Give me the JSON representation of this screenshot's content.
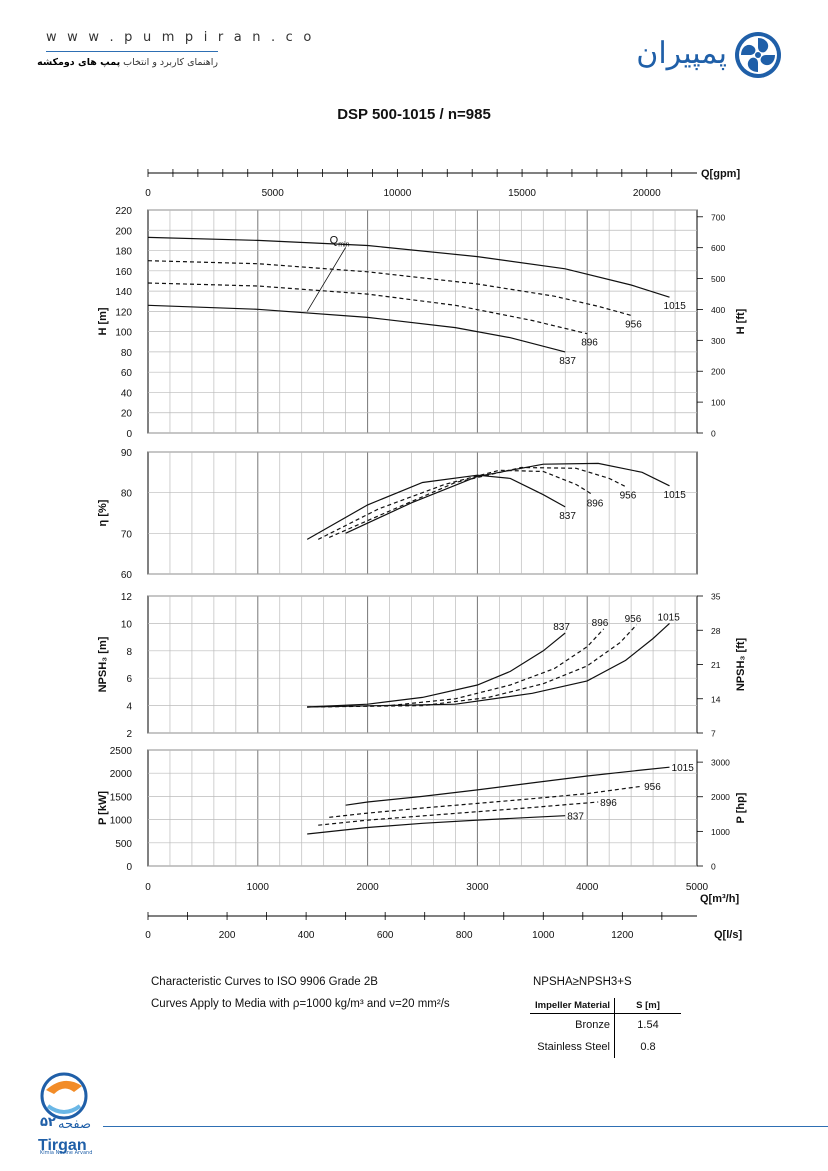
{
  "header": {
    "website": "w w w . p u m p i r a n . c o",
    "tagline_prefix": "راهنمای کاربرد و انتخاب ",
    "tagline_bold": "پمپ های دومکشه",
    "brand_name": "پمپیران",
    "brand_icon": "pumpiran-swirl-logo"
  },
  "title": "DSP 500-1015 / n=985",
  "chart_data": [
    {
      "type": "line",
      "panel": "head",
      "xlabel": "Q[m³/h]",
      "ylabel": "H [m]",
      "y2label": "H [ft]",
      "xlim": [
        0,
        5000
      ],
      "ylim": [
        0,
        220
      ],
      "y2lim": [
        0,
        722
      ],
      "yticks": [
        0,
        20,
        40,
        60,
        80,
        100,
        120,
        140,
        160,
        180,
        200,
        220
      ],
      "y2ticks": [
        0,
        100,
        200,
        300,
        400,
        500,
        600,
        700
      ],
      "series": [
        {
          "name": "1015",
          "style": "solid",
          "x": [
            0,
            1000,
            2000,
            3000,
            3800,
            4400,
            4750
          ],
          "y": [
            193,
            190,
            185,
            174,
            162,
            146,
            134
          ]
        },
        {
          "name": "956",
          "style": "dashed",
          "x": [
            0,
            1000,
            2000,
            3000,
            3700,
            4100,
            4400
          ],
          "y": [
            170,
            167,
            159,
            147,
            135,
            125,
            116
          ]
        },
        {
          "name": "896",
          "style": "dashed",
          "x": [
            0,
            1000,
            2000,
            2800,
            3500,
            4000
          ],
          "y": [
            148,
            145,
            137,
            126,
            111,
            98
          ]
        },
        {
          "name": "837",
          "style": "solid",
          "x": [
            0,
            1000,
            2000,
            2800,
            3300,
            3800
          ],
          "y": [
            126,
            122,
            114,
            104,
            94,
            80
          ]
        },
        {
          "name": "Q",
          "subscript": "min",
          "style": "thin",
          "x": [
            1450,
            1800
          ],
          "y": [
            120,
            183
          ]
        }
      ]
    },
    {
      "type": "line",
      "panel": "efficiency",
      "ylabel": "η [%]",
      "xlim": [
        0,
        5000
      ],
      "ylim": [
        60,
        90
      ],
      "yticks": [
        60,
        70,
        80,
        90
      ],
      "series": [
        {
          "name": "837",
          "style": "solid",
          "x": [
            1450,
            2000,
            2500,
            3000,
            3300,
            3600,
            3800
          ],
          "y": [
            68.5,
            77,
            82.5,
            84.3,
            83.5,
            79.5,
            76.5
          ]
        },
        {
          "name": "896",
          "style": "dashed",
          "x": [
            1550,
            2100,
            2700,
            3200,
            3600,
            3900,
            4050
          ],
          "y": [
            68.5,
            76,
            82,
            85.5,
            85.2,
            82,
            79.5
          ]
        },
        {
          "name": "956",
          "style": "dashed",
          "x": [
            1650,
            2200,
            2800,
            3400,
            3900,
            4200,
            4350
          ],
          "y": [
            69,
            75.5,
            82.5,
            86.2,
            86,
            83.5,
            81.5
          ]
        },
        {
          "name": "1015",
          "style": "solid",
          "x": [
            1800,
            2400,
            3000,
            3600,
            4100,
            4500,
            4750
          ],
          "y": [
            70,
            77.5,
            84,
            87,
            87.2,
            85,
            81.7
          ]
        }
      ]
    },
    {
      "type": "line",
      "panel": "npsh",
      "ylabel": "NPSH₃ [m]",
      "y2label": "NPSH₃ [ft]",
      "xlim": [
        0,
        5000
      ],
      "ylim": [
        2,
        12
      ],
      "y2lim": [
        7,
        35
      ],
      "yticks": [
        2,
        4,
        6,
        8,
        10,
        12
      ],
      "y2ticks": [
        7,
        14,
        21,
        28,
        35
      ],
      "series": [
        {
          "name": "837",
          "style": "solid",
          "x": [
            1450,
            2000,
            2500,
            3000,
            3300,
            3600,
            3800
          ],
          "y": [
            3.9,
            4.1,
            4.6,
            5.5,
            6.5,
            8,
            9.3
          ]
        },
        {
          "name": "896",
          "style": "dashed",
          "x": [
            1450,
            2200,
            2800,
            3300,
            3700,
            4000,
            4150
          ],
          "y": [
            3.9,
            4.0,
            4.5,
            5.5,
            6.7,
            8.3,
            9.6
          ]
        },
        {
          "name": "956",
          "style": "dashed",
          "x": [
            1450,
            2500,
            3100,
            3600,
            4000,
            4300,
            4450
          ],
          "y": [
            3.9,
            4.0,
            4.6,
            5.6,
            6.9,
            8.6,
            9.9
          ]
        },
        {
          "name": "1015",
          "style": "solid",
          "x": [
            1450,
            2800,
            3500,
            4000,
            4350,
            4600,
            4750
          ],
          "y": [
            3.9,
            4.1,
            4.9,
            5.8,
            7.3,
            8.9,
            10
          ]
        }
      ]
    },
    {
      "type": "line",
      "panel": "power",
      "ylabel": "P [kW]",
      "y2label": "P [hp]",
      "xlim": [
        0,
        5000
      ],
      "ylim": [
        0,
        2500
      ],
      "y2lim": [
        0,
        3350
      ],
      "yticks": [
        0,
        500,
        1000,
        1500,
        2000,
        2500
      ],
      "y2ticks": [
        0,
        1000,
        2000,
        3000
      ],
      "series": [
        {
          "name": "837",
          "style": "solid",
          "x": [
            1450,
            2000,
            2500,
            3000,
            3500,
            3800
          ],
          "y": [
            690,
            830,
            920,
            990,
            1050,
            1085
          ]
        },
        {
          "name": "896",
          "style": "dashed",
          "x": [
            1550,
            2000,
            2500,
            3000,
            3500,
            4100
          ],
          "y": [
            880,
            990,
            1080,
            1170,
            1260,
            1380
          ]
        },
        {
          "name": "956",
          "style": "dashed",
          "x": [
            1650,
            2000,
            2500,
            3000,
            3500,
            4000,
            4500
          ],
          "y": [
            1050,
            1140,
            1250,
            1350,
            1450,
            1560,
            1720
          ]
        },
        {
          "name": "1015",
          "style": "solid",
          "x": [
            1800,
            2000,
            2500,
            3000,
            3500,
            4000,
            4500,
            4750
          ],
          "y": [
            1310,
            1380,
            1500,
            1640,
            1790,
            1940,
            2070,
            2130
          ]
        }
      ]
    }
  ],
  "axes": {
    "gpm_label": "Q[gpm]",
    "gpm_ticks": [
      0,
      5000,
      10000,
      15000,
      20000
    ],
    "m3h_label": "Q[m³/h]",
    "m3h_ticks": [
      0,
      1000,
      2000,
      3000,
      4000,
      5000
    ],
    "ls_label": "Q[l/s]",
    "ls_ticks": [
      0,
      200,
      400,
      600,
      800,
      1000,
      1200
    ]
  },
  "notes": {
    "line1": "Characteristic Curves to ISO 9906 Grade 2B",
    "line2": "Curves Apply to Media with ρ=1000 kg/m³ and ν=20 mm²/s",
    "npsh_rule": "NPSHA≥NPSH3+S"
  },
  "material_table": {
    "headers": [
      "Impeller Material",
      "S [m]"
    ],
    "rows": [
      [
        "Bronze",
        "1.54"
      ],
      [
        "Stainless Steel",
        "0.8"
      ]
    ]
  },
  "footer": {
    "page_label": "صفحه",
    "page_number": "۵۲",
    "logo_name": "Tirgan",
    "logo_sub": "Kimia Novine Arvand"
  }
}
